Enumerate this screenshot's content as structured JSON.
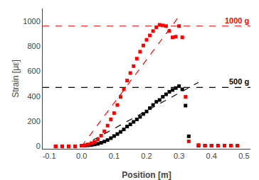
{
  "chart_data": {
    "type": "scatter",
    "xlabel": "Position [m]",
    "ylabel": "Strain [με]",
    "xlim": [
      -0.12,
      0.52
    ],
    "ylim": [
      -20,
      1100
    ],
    "xticks": [
      -0.1,
      {
        "value": 0,
        "label": "0.0"
      },
      0.1,
      0.2,
      0.3,
      0.4,
      0.5
    ],
    "yticks": [
      0,
      200,
      400,
      600,
      800,
      1000
    ],
    "grid": false,
    "hlines": [
      {
        "value": 960,
        "color": "#ff0000",
        "label": "1000 g"
      },
      {
        "value": 470,
        "color": "#000000",
        "label": "500 g"
      }
    ],
    "series": [
      {
        "type": "line",
        "line_style": "dashed",
        "color": "#000000",
        "x": [
          0.0,
          0.36
        ],
        "values": [
          0,
          510
        ]
      },
      {
        "type": "line",
        "line_style": "dashed",
        "color": "#ff0000",
        "x": [
          0.0,
          0.295
        ],
        "values": [
          0,
          1020
        ]
      },
      {
        "type": "scatter",
        "marker": "square",
        "color": "#000000",
        "x": [
          -0.08,
          -0.06,
          -0.04,
          -0.02,
          0.0,
          0.01,
          0.02,
          0.03,
          0.04,
          0.05,
          0.06,
          0.07,
          0.08,
          0.09,
          0.1,
          0.11,
          0.12,
          0.13,
          0.14,
          0.15,
          0.16,
          0.17,
          0.18,
          0.19,
          0.2,
          0.21,
          0.22,
          0.23,
          0.24,
          0.25,
          0.26,
          0.27,
          0.28,
          0.29,
          0.3,
          0.31,
          0.32,
          0.33,
          0.36,
          0.38,
          0.4,
          0.42,
          0.44,
          0.46,
          0.48
        ],
        "values": [
          0,
          0,
          0,
          0,
          5,
          5,
          8,
          10,
          15,
          20,
          28,
          38,
          50,
          65,
          82,
          98,
          115,
          135,
          158,
          175,
          195,
          215,
          235,
          258,
          278,
          305,
          330,
          355,
          370,
          395,
          415,
          435,
          450,
          465,
          480,
          455,
          325,
          80,
          5,
          5,
          5,
          5,
          5,
          5,
          5
        ]
      },
      {
        "type": "scatter",
        "marker": "square",
        "color": "#ff0000",
        "x": [
          -0.08,
          -0.06,
          -0.04,
          -0.02,
          0.0,
          0.01,
          0.02,
          0.03,
          0.04,
          0.05,
          0.06,
          0.07,
          0.08,
          0.09,
          0.1,
          0.11,
          0.12,
          0.13,
          0.14,
          0.15,
          0.16,
          0.17,
          0.18,
          0.19,
          0.2,
          0.21,
          0.22,
          0.23,
          0.24,
          0.25,
          0.26,
          0.27,
          0.28,
          0.29,
          0.3,
          0.31,
          0.32,
          0.33,
          0.36,
          0.38,
          0.4,
          0.42,
          0.44,
          0.46,
          0.48
        ],
        "values": [
          0,
          0,
          0,
          0,
          5,
          8,
          15,
          25,
          35,
          55,
          85,
          120,
          165,
          215,
          265,
          330,
          395,
          455,
          525,
          585,
          640,
          700,
          755,
          805,
          850,
          885,
          920,
          950,
          970,
          965,
          960,
          920,
          870,
          875,
          960,
          870,
          395,
          40,
          10,
          5,
          5,
          5,
          5,
          5,
          5
        ]
      }
    ]
  }
}
